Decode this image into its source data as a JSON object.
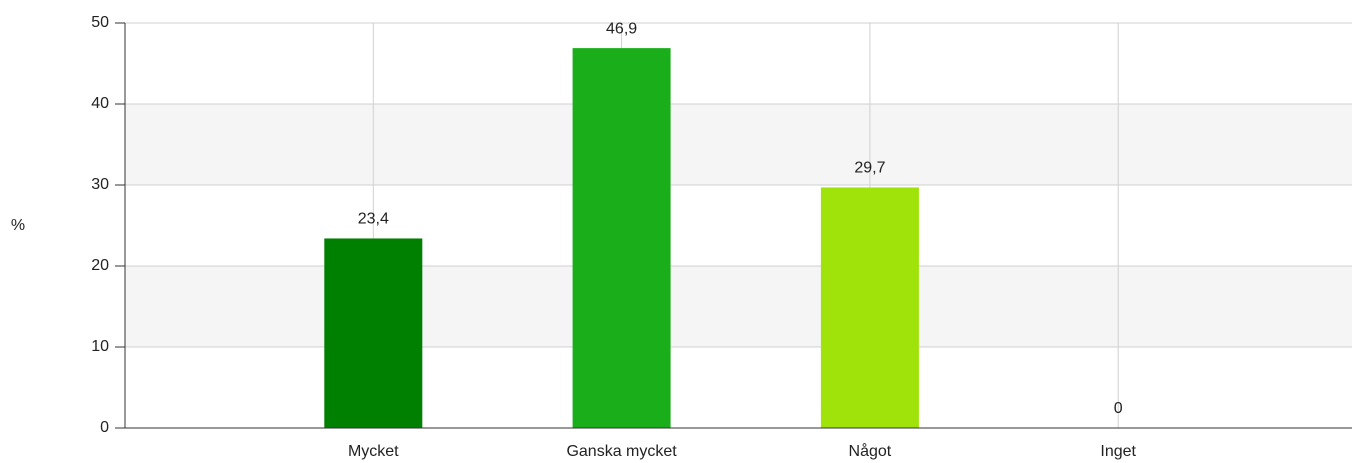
{
  "chart_data": {
    "type": "bar",
    "y_label": "%",
    "categories": [
      "Mycket",
      "Ganska mycket",
      "Något",
      "Inget"
    ],
    "values": [
      23.4,
      46.9,
      29.7,
      0
    ],
    "value_labels": [
      "23,4",
      "46,9",
      "29,7",
      "0"
    ],
    "colors": [
      "#008000",
      "#1aaf1a",
      "#a0e30a",
      "#c8f050"
    ],
    "ylim": [
      0,
      50
    ],
    "yticks": [
      0,
      10,
      20,
      30,
      40,
      50
    ],
    "grid": true
  }
}
